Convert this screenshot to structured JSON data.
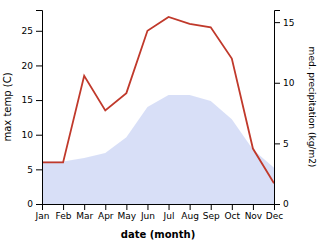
{
  "chart_data": {
    "type": "line",
    "xlabel": "date (month)",
    "ylabel": "max temp (C)",
    "y2label": "med. precipitation (kg/m2)",
    "categories": [
      "Jan",
      "Feb",
      "Mar",
      "Apr",
      "May",
      "Jun",
      "Jul",
      "Aug",
      "Sep",
      "Oct",
      "Nov",
      "Dec"
    ],
    "ylim": [
      0,
      28
    ],
    "yticks": [
      0,
      5,
      10,
      15,
      20,
      25
    ],
    "y2lim": [
      0,
      16
    ],
    "y2ticks": [
      0,
      5,
      10,
      15
    ],
    "grid": false,
    "series": [
      {
        "type": "area",
        "axis": "y2",
        "color": "#b8c4f0",
        "values": [
          3.5,
          3.5,
          3.8,
          4.2,
          5.5,
          8.0,
          9.0,
          9.0,
          8.5,
          7.0,
          4.5,
          3.0
        ]
      },
      {
        "type": "line",
        "color": "#c0392b",
        "values": [
          6,
          6,
          18.5,
          13.5,
          16,
          25,
          27,
          26,
          25.5,
          21,
          8,
          3
        ]
      }
    ]
  }
}
